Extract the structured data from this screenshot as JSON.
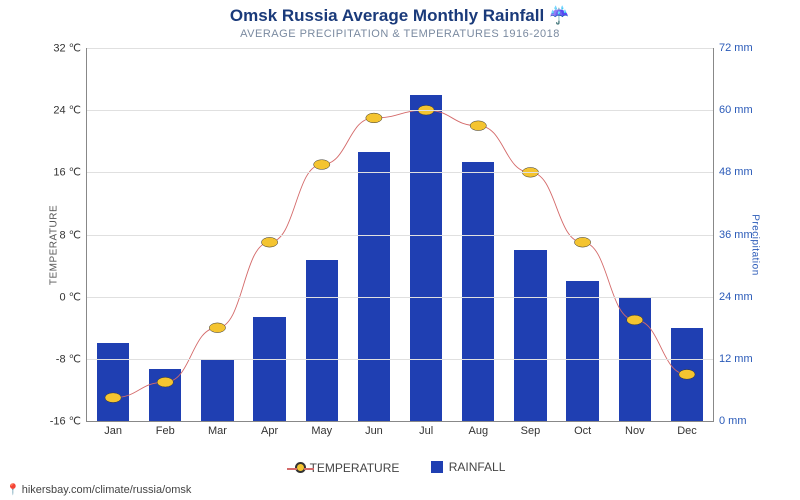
{
  "title": "Omsk Russia Average Monthly Rainfall ☔",
  "subtitle": "AVERAGE PRECIPITATION & TEMPERATURES 1916-2018",
  "left_axis": {
    "label": "TEMPERATURE",
    "min": -16,
    "max": 32,
    "step": 8,
    "unit": " ℃",
    "color": "#333333"
  },
  "right_axis": {
    "label": "Precipitation",
    "min": 0,
    "max": 72,
    "step": 12,
    "unit": " mm",
    "color": "#2a5ab8"
  },
  "categories": [
    "Jan",
    "Feb",
    "Mar",
    "Apr",
    "May",
    "Jun",
    "Jul",
    "Aug",
    "Sep",
    "Oct",
    "Nov",
    "Dec"
  ],
  "rainfall_values": [
    15,
    10,
    12,
    20,
    31,
    52,
    63,
    50,
    33,
    27,
    24,
    18
  ],
  "temperature_values": [
    -13,
    -11,
    -4,
    7,
    17,
    23,
    24,
    22,
    16,
    7,
    -3,
    -10
  ],
  "bar_color": "#1f3fb2",
  "line_color": "#d46a6a",
  "marker_fill": "#f4c430",
  "marker_stroke": "#333333",
  "grid_color": "#e0e0e0",
  "background": "#ffffff",
  "legend": {
    "temp": "TEMPERATURE",
    "rain": "RAINFALL"
  },
  "source": "hikersbay.com/climate/russia/omsk"
}
